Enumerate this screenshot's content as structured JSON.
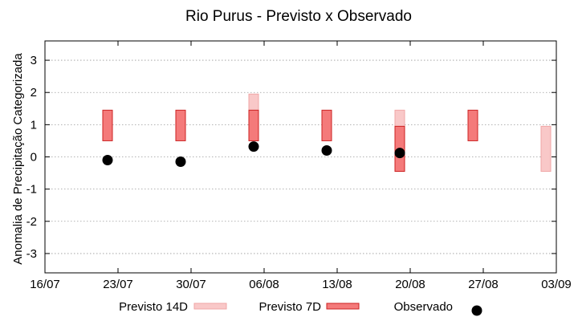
{
  "chart_data": {
    "type": "box",
    "title": "Rio Purus - Previsto x Observado",
    "xlabel": "",
    "ylabel": "Anomalia de Precipitação Categorizada",
    "xlim": [
      "2024-07-16",
      "2024-09-03"
    ],
    "ylim": [
      -3.6,
      3.6
    ],
    "x_ticks": [
      "16/07",
      "23/07",
      "30/07",
      "06/08",
      "13/08",
      "20/08",
      "27/08",
      "03/09"
    ],
    "y_ticks": [
      3,
      2,
      1,
      0,
      -1,
      -2,
      -3
    ],
    "grid": "horizontal dotted",
    "legend_position": "bottom",
    "colors": {
      "previsto_14d_fill": "#f9c8c8",
      "previsto_14d_stroke": "#f0a6a6",
      "previsto_7d_fill": "#f47a7a",
      "previsto_7d_stroke": "#cc2222",
      "observado": "#000000"
    },
    "series": [
      {
        "name": "Previsto 14D",
        "kind": "range",
        "points": [
          {
            "date": "2024-08-05",
            "low": 0.5,
            "high": 1.95
          },
          {
            "date": "2024-08-19",
            "low": -0.45,
            "high": 1.45
          },
          {
            "date": "2024-09-02",
            "low": -0.45,
            "high": 0.95
          }
        ]
      },
      {
        "name": "Previsto 7D",
        "kind": "range",
        "points": [
          {
            "date": "2024-07-22",
            "low": 0.5,
            "high": 1.45
          },
          {
            "date": "2024-07-29",
            "low": 0.5,
            "high": 1.45
          },
          {
            "date": "2024-08-05",
            "low": 0.5,
            "high": 1.45
          },
          {
            "date": "2024-08-12",
            "low": 0.5,
            "high": 1.45
          },
          {
            "date": "2024-08-19",
            "low": -0.45,
            "high": 0.95
          },
          {
            "date": "2024-08-26",
            "low": 0.5,
            "high": 1.45
          }
        ]
      },
      {
        "name": "Observado",
        "kind": "point",
        "points": [
          {
            "date": "2024-07-22",
            "value": -0.1
          },
          {
            "date": "2024-07-29",
            "value": -0.15
          },
          {
            "date": "2024-08-05",
            "value": 0.32
          },
          {
            "date": "2024-08-12",
            "value": 0.2
          },
          {
            "date": "2024-08-19",
            "value": 0.12
          }
        ]
      }
    ]
  }
}
